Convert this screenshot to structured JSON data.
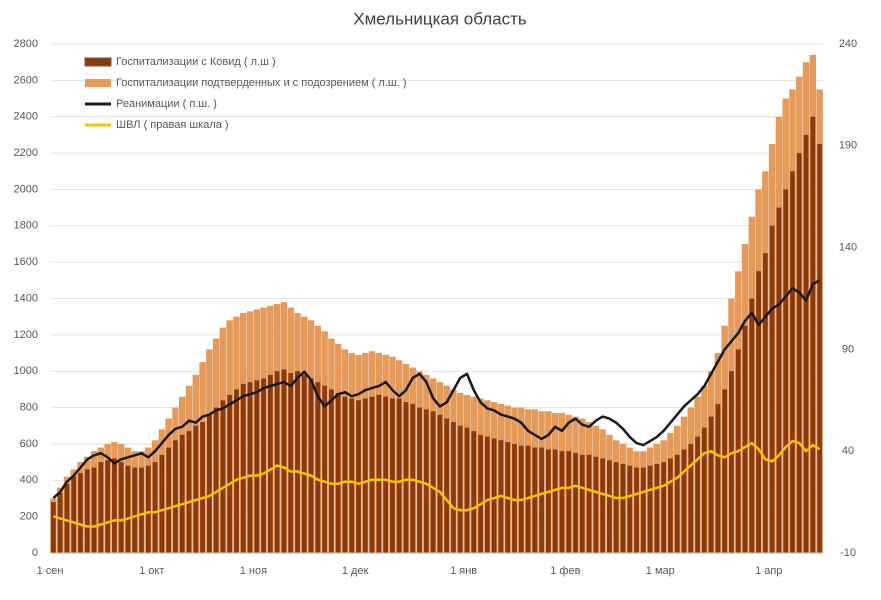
{
  "chart_data": {
    "type": "combo",
    "title": "Хмельницкая область",
    "categories": [
      "1 сен",
      null,
      null,
      null,
      null,
      null,
      null,
      null,
      null,
      null,
      null,
      null,
      null,
      null,
      null,
      "1 окт",
      null,
      null,
      null,
      null,
      null,
      null,
      null,
      null,
      null,
      null,
      null,
      null,
      null,
      null,
      "1 ноя",
      null,
      null,
      null,
      null,
      null,
      null,
      null,
      null,
      null,
      null,
      null,
      null,
      null,
      null,
      "1 дек",
      null,
      null,
      null,
      null,
      null,
      null,
      null,
      null,
      null,
      null,
      null,
      null,
      null,
      null,
      null,
      "1 янв",
      null,
      null,
      null,
      null,
      null,
      null,
      null,
      null,
      null,
      null,
      null,
      null,
      null,
      null,
      "1 фев",
      null,
      null,
      null,
      null,
      null,
      null,
      null,
      null,
      null,
      null,
      null,
      null,
      null,
      "1 мар",
      null,
      null,
      null,
      null,
      null,
      null,
      null,
      null,
      null,
      null,
      null,
      null,
      null,
      null,
      null,
      "1 апр",
      null,
      null,
      null,
      null,
      null,
      null,
      null
    ],
    "ylim": [
      0,
      2800
    ],
    "yticks": [
      0,
      200,
      400,
      600,
      800,
      1000,
      1200,
      1400,
      1600,
      1800,
      2000,
      2200,
      2400,
      2600,
      2800
    ],
    "y2lim": [
      -10,
      240
    ],
    "y2ticks": [
      -10,
      40,
      90,
      140,
      190,
      240
    ],
    "grid": true,
    "series": [
      {
        "name": "Госпитализации подтверденных и с подозрением ( л.ш. )",
        "type": "bar",
        "color": "#e59a5a",
        "values": [
          300,
          360,
          420,
          460,
          500,
          530,
          560,
          580,
          600,
          610,
          600,
          580,
          560,
          560,
          580,
          620,
          680,
          740,
          800,
          860,
          920,
          980,
          1050,
          1120,
          1180,
          1240,
          1280,
          1300,
          1320,
          1330,
          1340,
          1350,
          1360,
          1370,
          1380,
          1350,
          1320,
          1300,
          1280,
          1250,
          1220,
          1180,
          1150,
          1120,
          1100,
          1090,
          1100,
          1110,
          1100,
          1090,
          1080,
          1060,
          1040,
          1020,
          1000,
          980,
          960,
          940,
          920,
          900,
          880,
          870,
          860,
          850,
          840,
          830,
          820,
          810,
          800,
          800,
          790,
          790,
          780,
          780,
          770,
          770,
          760,
          750,
          740,
          720,
          700,
          680,
          650,
          620,
          600,
          580,
          560,
          560,
          580,
          600,
          620,
          660,
          700,
          750,
          800,
          860,
          920,
          1000,
          1100,
          1250,
          1400,
          1550,
          1700,
          1850,
          2000,
          2100,
          2250,
          2400,
          2500,
          2550,
          2620,
          2700,
          2740,
          2550
        ]
      },
      {
        "name": "Госпитализации с Ковид ( л.ш )",
        "type": "bar",
        "color": "#8b3a10",
        "values": [
          280,
          330,
          380,
          420,
          440,
          460,
          470,
          500,
          510,
          520,
          500,
          480,
          470,
          470,
          480,
          500,
          540,
          580,
          620,
          650,
          670,
          700,
          720,
          760,
          800,
          840,
          870,
          900,
          930,
          940,
          950,
          960,
          980,
          1000,
          1010,
          990,
          1000,
          980,
          960,
          940,
          920,
          900,
          880,
          860,
          850,
          840,
          850,
          860,
          870,
          860,
          850,
          850,
          830,
          820,
          800,
          790,
          780,
          760,
          740,
          720,
          700,
          690,
          670,
          650,
          640,
          630,
          620,
          610,
          600,
          590,
          590,
          580,
          580,
          570,
          570,
          560,
          560,
          550,
          540,
          540,
          530,
          520,
          510,
          500,
          490,
          480,
          470,
          470,
          480,
          490,
          500,
          520,
          540,
          570,
          600,
          640,
          690,
          750,
          820,
          900,
          1000,
          1120,
          1250,
          1400,
          1550,
          1650,
          1800,
          1900,
          2000,
          2100,
          2200,
          2300,
          2400,
          2250
        ]
      },
      {
        "name": "Реанимации ( п.ш. )",
        "type": "line",
        "axis": "y2",
        "color": "#1a1a1a",
        "values": [
          17,
          20,
          25,
          28,
          32,
          36,
          38,
          39,
          37,
          34,
          36,
          37,
          38,
          39,
          37,
          40,
          44,
          48,
          51,
          52,
          55,
          54,
          57,
          58,
          60,
          61,
          63,
          65,
          67,
          68,
          69,
          71,
          72,
          73,
          74,
          72,
          76,
          79,
          75,
          67,
          62,
          65,
          68,
          69,
          67,
          68,
          70,
          71,
          72,
          74,
          70,
          67,
          70,
          76,
          78,
          74,
          66,
          62,
          64,
          70,
          76,
          78,
          70,
          64,
          61,
          60,
          58,
          57,
          56,
          54,
          50,
          48,
          46,
          48,
          52,
          50,
          54,
          56,
          53,
          52,
          55,
          57,
          56,
          54,
          51,
          47,
          44,
          43,
          45,
          47,
          50,
          54,
          58,
          62,
          65,
          68,
          72,
          78,
          84,
          90,
          94,
          98,
          104,
          108,
          102,
          106,
          110,
          112,
          116,
          120,
          118,
          114,
          122,
          124
        ]
      },
      {
        "name": "ШВЛ ( правая шкала )",
        "type": "line",
        "axis": "y2",
        "color": "#ffc000",
        "values": [
          8,
          7,
          6,
          5,
          4,
          3,
          3,
          4,
          5,
          6,
          6,
          7,
          8,
          9,
          10,
          10,
          11,
          12,
          13,
          14,
          15,
          16,
          17,
          18,
          20,
          22,
          24,
          26,
          27,
          28,
          28,
          29,
          31,
          33,
          32,
          30,
          30,
          29,
          28,
          26,
          25,
          24,
          24,
          25,
          25,
          24,
          25,
          26,
          26,
          26,
          25,
          25,
          26,
          26,
          25,
          24,
          22,
          20,
          16,
          12,
          11,
          11,
          12,
          14,
          16,
          17,
          18,
          17,
          16,
          16,
          17,
          18,
          19,
          20,
          21,
          22,
          22,
          23,
          22,
          21,
          20,
          19,
          18,
          17,
          17,
          18,
          19,
          20,
          21,
          22,
          23,
          25,
          27,
          30,
          33,
          36,
          39,
          40,
          38,
          37,
          39,
          40,
          42,
          44,
          41,
          36,
          35,
          38,
          42,
          45,
          44,
          40,
          43,
          41
        ]
      }
    ]
  }
}
